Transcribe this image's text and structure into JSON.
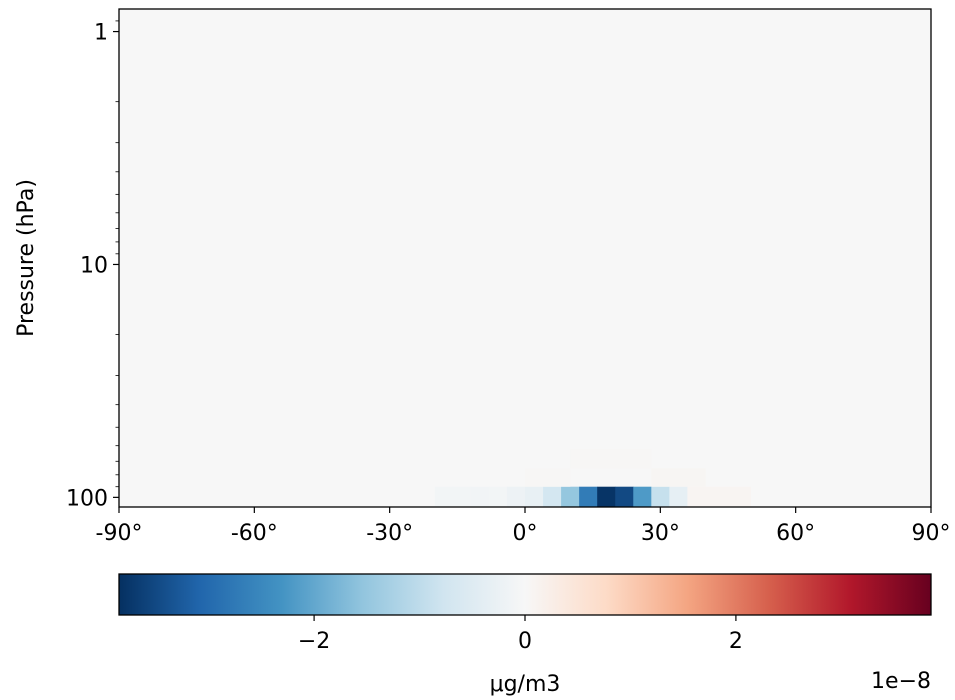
{
  "chart_data": {
    "type": "heatmap",
    "title": "",
    "xlabel": "",
    "ylabel": "Pressure (hPa)",
    "x_ticks": [
      "-90°",
      "-60°",
      "-30°",
      "0°",
      "30°",
      "60°",
      "90°"
    ],
    "x_tick_values": [
      -90,
      -60,
      -30,
      0,
      30,
      60,
      90
    ],
    "xlim": [
      -90,
      90
    ],
    "y_ticks": [
      "1",
      "10",
      "100"
    ],
    "y_tick_values": [
      1,
      10,
      100
    ],
    "y_scale": "log",
    "y_inverted": true,
    "ylim": [
      110,
      0.8
    ],
    "background_value": 0,
    "cells": [
      {
        "lat_start": -20,
        "lat_end": -16,
        "p_top": 90,
        "p_bot": 110,
        "value": -0.1
      },
      {
        "lat_start": -16,
        "lat_end": -12,
        "p_top": 90,
        "p_bot": 110,
        "value": -0.1
      },
      {
        "lat_start": -12,
        "lat_end": -8,
        "p_top": 90,
        "p_bot": 110,
        "value": -0.12
      },
      {
        "lat_start": -8,
        "lat_end": -4,
        "p_top": 90,
        "p_bot": 110,
        "value": -0.1
      },
      {
        "lat_start": -4,
        "lat_end": 0,
        "p_top": 90,
        "p_bot": 110,
        "value": -0.2
      },
      {
        "lat_start": 0,
        "lat_end": 4,
        "p_top": 90,
        "p_bot": 110,
        "value": -0.3
      },
      {
        "lat_start": 4,
        "lat_end": 8,
        "p_top": 90,
        "p_bot": 110,
        "value": -0.7
      },
      {
        "lat_start": 8,
        "lat_end": 12,
        "p_top": 90,
        "p_bot": 110,
        "value": -1.5
      },
      {
        "lat_start": 12,
        "lat_end": 16,
        "p_top": 90,
        "p_bot": 110,
        "value": -2.7
      },
      {
        "lat_start": 16,
        "lat_end": 20,
        "p_top": 90,
        "p_bot": 110,
        "value": -3.8
      },
      {
        "lat_start": 20,
        "lat_end": 24,
        "p_top": 90,
        "p_bot": 110,
        "value": -3.5
      },
      {
        "lat_start": 24,
        "lat_end": 28,
        "p_top": 90,
        "p_bot": 110,
        "value": -2.2
      },
      {
        "lat_start": 28,
        "lat_end": 32,
        "p_top": 90,
        "p_bot": 110,
        "value": -0.9
      },
      {
        "lat_start": 32,
        "lat_end": 36,
        "p_top": 90,
        "p_bot": 110,
        "value": -0.35
      },
      {
        "lat_start": 36,
        "lat_end": 50,
        "p_top": 90,
        "p_bot": 110,
        "value": 0.08
      },
      {
        "lat_start": 28,
        "lat_end": 40,
        "p_top": 75,
        "p_bot": 90,
        "value": 0.06
      },
      {
        "lat_start": 10,
        "lat_end": 28,
        "p_top": 62,
        "p_bot": 75,
        "value": 0.04
      },
      {
        "lat_start": 0,
        "lat_end": 10,
        "p_top": 75,
        "p_bot": 90,
        "value": 0.03
      }
    ],
    "colorbar": {
      "colormap": "RdBu_r",
      "vmin": -3.85,
      "vmax": 3.85,
      "ticks": [
        -2,
        0,
        2
      ],
      "tick_labels": [
        "−2",
        "0",
        "2"
      ],
      "label": "μg/m3",
      "offset_text": "1e−8",
      "orientation": "horizontal",
      "colors": [
        "#053061",
        "#2166ac",
        "#4393c3",
        "#92c5de",
        "#d1e5f0",
        "#f7f7f7",
        "#fddbc7",
        "#f4a582",
        "#d6604d",
        "#b2182b",
        "#67001f"
      ]
    }
  }
}
